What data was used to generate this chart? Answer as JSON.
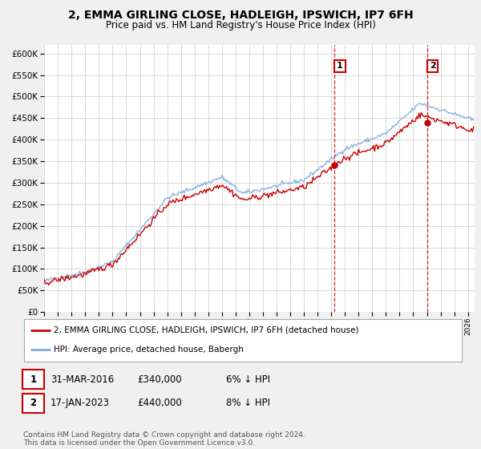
{
  "title": "2, EMMA GIRLING CLOSE, HADLEIGH, IPSWICH, IP7 6FH",
  "subtitle": "Price paid vs. HM Land Registry's House Price Index (HPI)",
  "legend_label_red": "2, EMMA GIRLING CLOSE, HADLEIGH, IPSWICH, IP7 6FH (detached house)",
  "legend_label_blue": "HPI: Average price, detached house, Babergh",
  "transaction1_date": "31-MAR-2016",
  "transaction1_price": "£340,000",
  "transaction1_hpi": "6% ↓ HPI",
  "transaction2_date": "17-JAN-2023",
  "transaction2_price": "£440,000",
  "transaction2_hpi": "8% ↓ HPI",
  "footer": "Contains HM Land Registry data © Crown copyright and database right 2024.\nThis data is licensed under the Open Government Licence v3.0.",
  "vline1_x": 2016.25,
  "vline2_x": 2023.05,
  "marker1_x": 2016.25,
  "marker1_y": 340000,
  "marker2_x": 2023.05,
  "marker2_y": 440000,
  "ylim": [
    0,
    620000
  ],
  "yticks": [
    0,
    50000,
    100000,
    150000,
    200000,
    250000,
    300000,
    350000,
    400000,
    450000,
    500000,
    550000,
    600000
  ],
  "xlim_min": 1995.0,
  "xlim_max": 2026.5,
  "background_color": "#f0f0f0",
  "plot_bg_color": "#ffffff",
  "grid_color": "#cccccc",
  "red_color": "#cc0000",
  "blue_color": "#7aaadd",
  "vline_color": "#cc0000"
}
